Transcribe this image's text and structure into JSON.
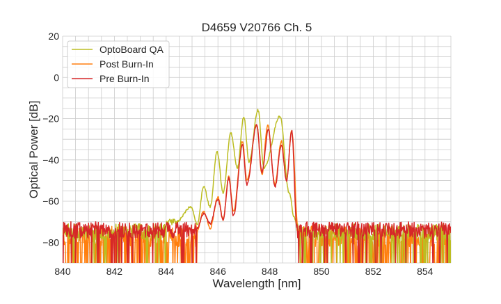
{
  "chart_data": {
    "type": "line",
    "title": "D4659 V20766 Ch. 5",
    "xlabel": "Wavelength [nm]",
    "ylabel": "Optical Power [dB]",
    "xlim": [
      840,
      855
    ],
    "ylim": [
      -90,
      20
    ],
    "xticks": [
      840,
      842,
      844,
      846,
      848,
      850,
      852,
      854
    ],
    "yticks": [
      20,
      0,
      -20,
      -40,
      -60,
      -80
    ],
    "xtick_labels": [
      "840",
      "842",
      "844",
      "846",
      "848",
      "850",
      "852",
      "854"
    ],
    "ytick_labels": [
      "20",
      "0",
      "−20",
      "−40",
      "−60",
      "−80"
    ],
    "grid": true,
    "legend_position": "top-left",
    "series": [
      {
        "name": "OptoBoard QA",
        "color": "#bcbd22",
        "noise_floor": {
          "base": -75,
          "spread": 4,
          "deep_drop_prob": 0.12,
          "seed": 3
        },
        "extrema": [
          [
            844.4,
            -70
          ],
          [
            844.95,
            -63
          ],
          [
            845.2,
            -71
          ],
          [
            845.45,
            -53
          ],
          [
            845.7,
            -63
          ],
          [
            845.97,
            -36
          ],
          [
            846.2,
            -56
          ],
          [
            846.5,
            -27
          ],
          [
            846.75,
            -44
          ],
          [
            847.0,
            -19
          ],
          [
            847.2,
            -41
          ],
          [
            847.55,
            -16
          ],
          [
            847.78,
            -44
          ],
          [
            848.4,
            -19
          ],
          [
            848.75,
            -56
          ],
          [
            848.95,
            -68
          ],
          [
            849.05,
            -72
          ]
        ]
      },
      {
        "name": "Post Burn-In",
        "color": "#ff7f0e",
        "noise_floor": {
          "base": -77,
          "spread": 5,
          "deep_drop_prob": 0.3,
          "seed": 7
        },
        "extrema": [
          [
            845.2,
            -74
          ],
          [
            845.45,
            -65
          ],
          [
            845.7,
            -73
          ],
          [
            846.0,
            -58
          ],
          [
            846.2,
            -69
          ],
          [
            846.42,
            -48
          ],
          [
            846.6,
            -65
          ],
          [
            846.95,
            -31
          ],
          [
            847.12,
            -50
          ],
          [
            847.5,
            -23
          ],
          [
            847.7,
            -47
          ],
          [
            847.92,
            -23
          ],
          [
            848.2,
            -52
          ],
          [
            848.45,
            -31
          ],
          [
            848.65,
            -50
          ],
          [
            848.85,
            -26
          ],
          [
            849.1,
            -74
          ]
        ]
      },
      {
        "name": "Pre Burn-In",
        "color": "#d62728",
        "noise_floor": {
          "base": -74,
          "spread": 4,
          "deep_drop_prob": 0.08,
          "seed": 11
        },
        "extrema": [
          [
            845.2,
            -73
          ],
          [
            845.45,
            -66
          ],
          [
            845.7,
            -71
          ],
          [
            846.0,
            -59
          ],
          [
            846.2,
            -69
          ],
          [
            846.42,
            -49
          ],
          [
            846.6,
            -67
          ],
          [
            846.95,
            -33
          ],
          [
            847.12,
            -52
          ],
          [
            847.5,
            -23
          ],
          [
            847.7,
            -46
          ],
          [
            847.95,
            -25.5
          ],
          [
            848.2,
            -53
          ],
          [
            848.45,
            -33
          ],
          [
            848.65,
            -50
          ],
          [
            848.85,
            -26
          ],
          [
            849.05,
            -73
          ]
        ]
      }
    ]
  }
}
